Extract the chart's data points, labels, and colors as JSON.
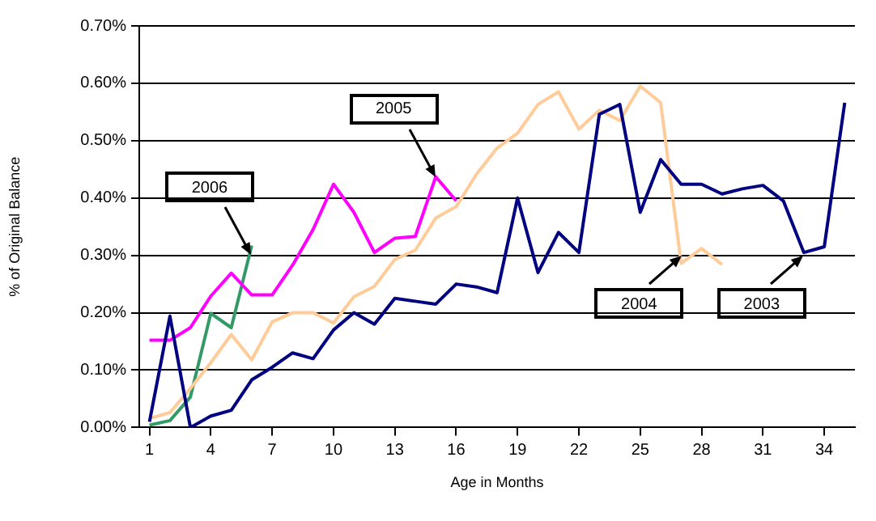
{
  "chart_data": {
    "type": "line",
    "xlabel": "Age in Months",
    "ylabel": "% of Original Balance",
    "x": [
      1,
      2,
      3,
      4,
      5,
      6,
      7,
      8,
      9,
      10,
      11,
      12,
      13,
      14,
      15,
      16,
      17,
      18,
      19,
      20,
      21,
      22,
      23,
      24,
      25,
      26,
      27,
      28,
      29,
      30,
      31,
      32,
      33,
      34,
      35
    ],
    "xlim": [
      0.5,
      35.5
    ],
    "xticks": [
      1,
      4,
      7,
      10,
      13,
      16,
      19,
      22,
      25,
      28,
      31,
      34
    ],
    "ylim": [
      0,
      0.7
    ],
    "yticks": [
      {
        "value": 0,
        "label": "0.00%"
      },
      {
        "value": 0.1,
        "label": "0.10%"
      },
      {
        "value": 0.2,
        "label": "0.20%"
      },
      {
        "value": 0.3,
        "label": "0.30%"
      },
      {
        "value": 0.4,
        "label": "0.40%"
      },
      {
        "value": 0.5,
        "label": "0.50%"
      },
      {
        "value": 0.6,
        "label": "0.60%"
      },
      {
        "value": 0.7,
        "label": "0.70%"
      }
    ],
    "grid": "y",
    "legend": false,
    "marker": "none",
    "line_style": "solid",
    "series": [
      {
        "color": "#000080",
        "values": [
          0.01,
          0.194,
          0.0,
          0.02,
          0.03,
          0.083,
          0.105,
          0.13,
          0.12,
          0.17,
          0.2,
          0.18,
          0.225,
          0.22,
          0.215,
          0.25,
          0.245,
          0.235,
          0.4,
          0.27,
          0.34,
          0.305,
          0.546,
          0.563,
          0.375,
          0.467,
          0.424,
          0.424,
          0.407,
          0.416,
          0.422,
          0.395,
          0.305,
          0.315,
          0.566
        ]
      },
      {
        "color": "#ffcc99",
        "values": [
          0.016,
          0.026,
          0.068,
          0.113,
          0.162,
          0.118,
          0.184,
          0.2,
          0.2,
          0.182,
          0.228,
          0.246,
          0.293,
          0.309,
          0.365,
          0.385,
          0.442,
          0.487,
          0.513,
          0.563,
          0.585,
          0.52,
          0.553,
          0.535,
          0.595,
          0.566,
          0.286,
          0.312,
          0.284,
          null,
          null,
          null,
          null,
          null,
          null
        ]
      },
      {
        "color": "#ff00ff",
        "values": [
          0.152,
          0.152,
          0.174,
          0.229,
          0.269,
          0.231,
          0.231,
          0.283,
          0.345,
          0.424,
          0.375,
          0.305,
          0.33,
          0.333,
          0.437,
          0.395,
          null,
          null,
          null,
          null,
          null,
          null,
          null,
          null,
          null,
          null,
          null,
          null,
          null,
          null,
          null,
          null,
          null,
          null,
          null
        ]
      },
      {
        "color": "#339966",
        "values": [
          0.004,
          0.012,
          0.053,
          0.199,
          0.174,
          0.317,
          null,
          null,
          null,
          null,
          null,
          null,
          null,
          null,
          null,
          null,
          null,
          null,
          null,
          null,
          null,
          null,
          null,
          null,
          null,
          null,
          null,
          null,
          null,
          null,
          null,
          null,
          null,
          null,
          null
        ]
      }
    ],
    "annotations": [
      {
        "text": "2006",
        "x": 6,
        "y": 0.3
      },
      {
        "text": "2005",
        "x": 15,
        "y": 0.437
      },
      {
        "text": "2004",
        "x": 27,
        "y": 0.3
      },
      {
        "text": "2003",
        "x": 33,
        "y": 0.3
      }
    ]
  }
}
